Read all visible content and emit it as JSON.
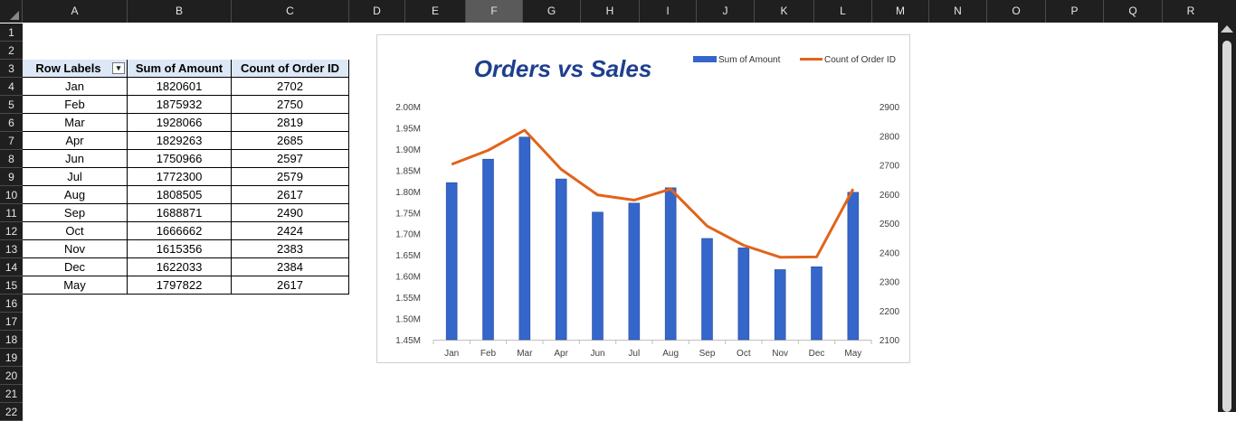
{
  "sheet": {
    "columns": [
      "A",
      "B",
      "C",
      "D",
      "E",
      "F",
      "G",
      "H",
      "I",
      "J",
      "K",
      "L",
      "M",
      "N",
      "O",
      "P",
      "Q",
      "R"
    ],
    "selected_column": "F",
    "rows": [
      "1",
      "2",
      "3",
      "4",
      "5",
      "6",
      "7",
      "8",
      "9",
      "10",
      "11",
      "12",
      "13",
      "14",
      "15",
      "16",
      "17",
      "18",
      "19",
      "20",
      "21",
      "22"
    ]
  },
  "pivot": {
    "headers": [
      "Row Labels",
      "Sum of Amount",
      "Count of Order ID"
    ],
    "filter_icon": "filter-dropdown-icon",
    "rows": [
      [
        "Jan",
        "1820601",
        "2702"
      ],
      [
        "Feb",
        "1875932",
        "2750"
      ],
      [
        "Mar",
        "1928066",
        "2819"
      ],
      [
        "Apr",
        "1829263",
        "2685"
      ],
      [
        "Jun",
        "1750966",
        "2597"
      ],
      [
        "Jul",
        "1772300",
        "2579"
      ],
      [
        "Aug",
        "1808505",
        "2617"
      ],
      [
        "Sep",
        "1688871",
        "2490"
      ],
      [
        "Oct",
        "1666662",
        "2424"
      ],
      [
        "Nov",
        "1615356",
        "2383"
      ],
      [
        "Dec",
        "1622033",
        "2384"
      ],
      [
        "May",
        "1797822",
        "2617"
      ]
    ]
  },
  "chart_data": {
    "type": "bar",
    "title": "Orders vs Sales",
    "categories": [
      "Jan",
      "Feb",
      "Mar",
      "Apr",
      "Jun",
      "Jul",
      "Aug",
      "Sep",
      "Oct",
      "Nov",
      "Dec",
      "May"
    ],
    "series": [
      {
        "name": "Sum of Amount",
        "type": "bar",
        "axis": "left",
        "color": "#3566c9",
        "values": [
          1820601,
          1875932,
          1928066,
          1829263,
          1750966,
          1772300,
          1808505,
          1688871,
          1666662,
          1615356,
          1622033,
          1797822
        ]
      },
      {
        "name": "Count of Order ID",
        "type": "line",
        "axis": "right",
        "color": "#e2631b",
        "values": [
          2702,
          2750,
          2819,
          2685,
          2597,
          2579,
          2617,
          2490,
          2424,
          2383,
          2384,
          2617
        ]
      }
    ],
    "y_left": {
      "ylim": [
        1450000,
        2000000
      ],
      "ticks": [
        2000000,
        1950000,
        1900000,
        1850000,
        1800000,
        1750000,
        1700000,
        1650000,
        1600000,
        1550000,
        1500000,
        1450000
      ],
      "tick_labels": [
        "2.00M",
        "1.95M",
        "1.90M",
        "1.85M",
        "1.80M",
        "1.75M",
        "1.70M",
        "1.65M",
        "1.60M",
        "1.55M",
        "1.50M",
        "1.45M"
      ]
    },
    "y_right": {
      "ylim": [
        2100,
        2900
      ],
      "ticks": [
        2900,
        2800,
        2700,
        2600,
        2500,
        2400,
        2300,
        2200,
        2100
      ],
      "tick_labels": [
        "2900",
        "2800",
        "2700",
        "2600",
        "2500",
        "2400",
        "2300",
        "2200",
        "2100"
      ]
    },
    "grid": false,
    "legend_position": "top-right",
    "title_color": "#1f3f8f"
  }
}
